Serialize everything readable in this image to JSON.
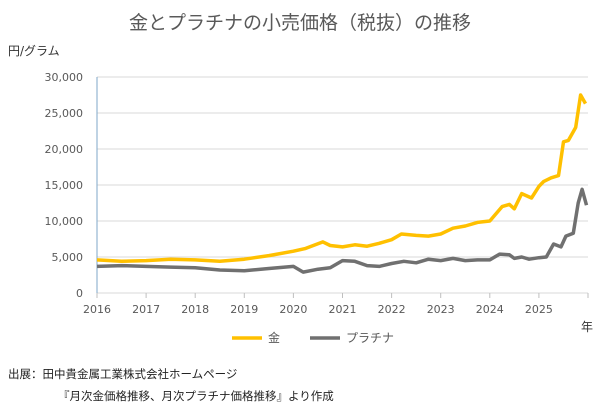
{
  "chart_data": {
    "type": "line",
    "title": "金とプラチナの小売価格（税抜）の推移",
    "ylabel": "円/グラム",
    "xlabel": "年",
    "ylim": [
      0,
      30000
    ],
    "xlim": [
      2016,
      2026
    ],
    "yticks": [
      "0",
      "5,000",
      "10,000",
      "15,000",
      "20,000",
      "25,000",
      "30,000"
    ],
    "xticks": [
      "2016",
      "2017",
      "2018",
      "2019",
      "2020",
      "2021",
      "2022",
      "2023",
      "2024",
      "2025"
    ],
    "grid": true,
    "legend": "bottom",
    "series": [
      {
        "name": "金",
        "color": "#FFC000",
        "x": [
          2016,
          2016.5,
          2017,
          2017.5,
          2018,
          2018.5,
          2019,
          2019.5,
          2020,
          2020.25,
          2020.6,
          2020.75,
          2021,
          2021.25,
          2021.5,
          2021.75,
          2022,
          2022.2,
          2022.5,
          2022.75,
          2023,
          2023.25,
          2023.5,
          2023.75,
          2024,
          2024.25,
          2024.4,
          2024.5,
          2024.65,
          2024.85,
          2025,
          2025.1,
          2025.25,
          2025.4,
          2025.5,
          2025.6,
          2025.75,
          2025.85,
          2025.95
        ],
        "y": [
          4600,
          4400,
          4500,
          4700,
          4600,
          4400,
          4700,
          5200,
          5800,
          6200,
          7100,
          6600,
          6400,
          6700,
          6500,
          6900,
          7400,
          8200,
          8000,
          7900,
          8200,
          9000,
          9300,
          9800,
          10000,
          12000,
          12300,
          11700,
          13800,
          13200,
          14800,
          15500,
          16000,
          16300,
          21000,
          21200,
          23000,
          27500,
          26300
        ]
      },
      {
        "name": "プラチナ",
        "color": "#707070",
        "x": [
          2016,
          2016.5,
          2017,
          2017.5,
          2018,
          2018.5,
          2019,
          2019.5,
          2020,
          2020.2,
          2020.5,
          2020.75,
          2021,
          2021.25,
          2021.5,
          2021.75,
          2022,
          2022.25,
          2022.5,
          2022.75,
          2023,
          2023.25,
          2023.5,
          2023.75,
          2024,
          2024.2,
          2024.4,
          2024.5,
          2024.65,
          2024.8,
          2025,
          2025.15,
          2025.3,
          2025.45,
          2025.55,
          2025.7,
          2025.8,
          2025.88,
          2025.97
        ],
        "y": [
          3700,
          3800,
          3700,
          3600,
          3500,
          3200,
          3100,
          3400,
          3700,
          2900,
          3300,
          3500,
          4500,
          4400,
          3800,
          3700,
          4100,
          4400,
          4200,
          4700,
          4500,
          4800,
          4500,
          4600,
          4600,
          5400,
          5300,
          4800,
          5000,
          4700,
          4900,
          5000,
          6800,
          6400,
          7900,
          8300,
          12500,
          14400,
          12200
        ]
      }
    ]
  },
  "source": {
    "line1": "出展：田中貴金属工業株式会社ホームページ",
    "line2": "『月次金価格推移、月次プラチナ価格推移』より作成"
  }
}
